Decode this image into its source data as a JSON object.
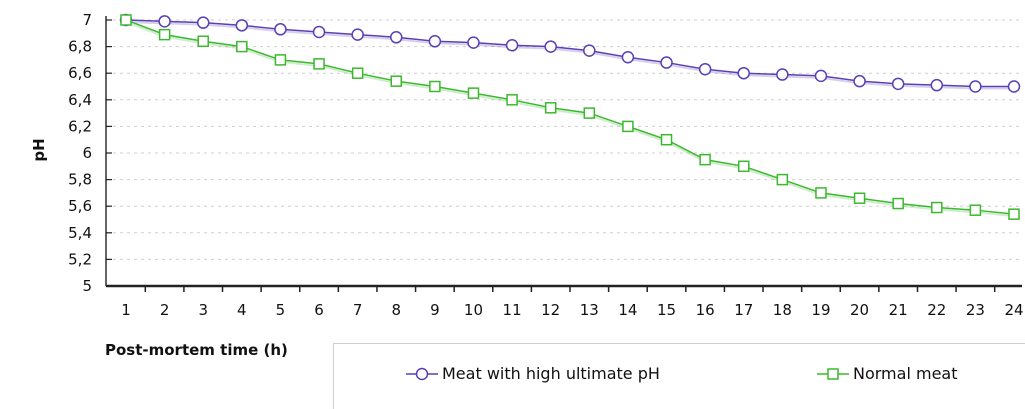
{
  "chart_data": {
    "type": "line",
    "x": [
      1,
      2,
      3,
      4,
      5,
      6,
      7,
      8,
      9,
      10,
      11,
      12,
      13,
      14,
      15,
      16,
      17,
      18,
      19,
      20,
      21,
      22,
      23,
      24
    ],
    "series": [
      {
        "name": "Meat with high ultimate pH",
        "marker": "circle",
        "color": "#5a3fb5",
        "values": [
          7.0,
          6.99,
          6.98,
          6.96,
          6.93,
          6.91,
          6.89,
          6.87,
          6.84,
          6.83,
          6.81,
          6.8,
          6.77,
          6.72,
          6.68,
          6.63,
          6.6,
          6.59,
          6.58,
          6.54,
          6.52,
          6.51,
          6.5,
          6.5
        ]
      },
      {
        "name": "Normal meat",
        "marker": "square",
        "color": "#3cb82e",
        "values": [
          7.0,
          6.89,
          6.84,
          6.8,
          6.7,
          6.67,
          6.6,
          6.54,
          6.5,
          6.45,
          6.4,
          6.34,
          6.3,
          6.2,
          6.1,
          5.95,
          5.9,
          5.8,
          5.7,
          5.66,
          5.62,
          5.59,
          5.57,
          5.54
        ]
      }
    ],
    "xlabel": "Post-mortem time (h)",
    "ylabel": "pH",
    "xlim": [
      1,
      24
    ],
    "ylim": [
      5,
      7
    ],
    "y_ticks": [
      "5",
      "5,2",
      "5,4",
      "5,6",
      "5,8",
      "6",
      "6,2",
      "6,4",
      "6,6",
      "6,8",
      "7"
    ],
    "x_ticks": [
      "1",
      "2",
      "3",
      "4",
      "5",
      "6",
      "7",
      "8",
      "9",
      "10",
      "11",
      "12",
      "13",
      "14",
      "15",
      "16",
      "17",
      "18",
      "19",
      "20",
      "21",
      "22",
      "23",
      "24"
    ],
    "grid": "horizontal dashed",
    "legend_position": "bottom"
  }
}
